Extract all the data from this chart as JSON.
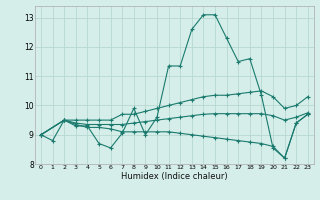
{
  "title": "",
  "xlabel": "Humidex (Indice chaleur)",
  "background_color": "#d5eee9",
  "grid_color": "#b8d8d2",
  "line_color": "#1a7a6e",
  "xlim": [
    -0.5,
    23.5
  ],
  "ylim": [
    8.0,
    13.4
  ],
  "yticks": [
    8,
    9,
    10,
    11,
    12,
    13
  ],
  "xticks": [
    0,
    1,
    2,
    3,
    4,
    5,
    6,
    7,
    8,
    9,
    10,
    11,
    12,
    13,
    14,
    15,
    16,
    17,
    18,
    19,
    20,
    21,
    22,
    23
  ],
  "lines": [
    {
      "x": [
        0,
        1,
        2,
        3,
        4,
        5,
        6,
        7,
        8,
        9,
        10,
        11,
        12,
        13,
        14,
        15,
        16,
        17,
        18,
        19,
        20,
        21,
        22,
        23
      ],
      "y": [
        9.0,
        8.8,
        9.5,
        9.3,
        9.3,
        8.7,
        8.55,
        9.05,
        9.9,
        9.0,
        9.6,
        11.35,
        11.35,
        12.6,
        13.1,
        13.1,
        12.3,
        11.5,
        11.6,
        10.35,
        8.55,
        8.2,
        9.4,
        9.7
      ]
    },
    {
      "x": [
        0,
        2,
        3,
        4,
        5,
        6,
        7,
        8,
        9,
        10,
        11,
        12,
        13,
        14,
        15,
        16,
        17,
        18,
        19,
        20,
        21,
        22,
        23
      ],
      "y": [
        9.0,
        9.5,
        9.5,
        9.5,
        9.5,
        9.5,
        9.7,
        9.7,
        9.8,
        9.9,
        10.0,
        10.1,
        10.2,
        10.3,
        10.35,
        10.35,
        10.4,
        10.45,
        10.5,
        10.3,
        9.9,
        10.0,
        10.3
      ]
    },
    {
      "x": [
        0,
        2,
        3,
        4,
        5,
        6,
        7,
        8,
        9,
        10,
        11,
        12,
        13,
        14,
        15,
        16,
        17,
        18,
        19,
        20,
        21,
        22,
        23
      ],
      "y": [
        9.0,
        9.5,
        9.4,
        9.35,
        9.35,
        9.35,
        9.35,
        9.4,
        9.45,
        9.5,
        9.55,
        9.6,
        9.65,
        9.7,
        9.72,
        9.72,
        9.72,
        9.72,
        9.72,
        9.65,
        9.5,
        9.6,
        9.75
      ]
    },
    {
      "x": [
        0,
        2,
        3,
        4,
        5,
        6,
        7,
        8,
        9,
        10,
        11,
        12,
        13,
        14,
        15,
        16,
        17,
        18,
        19,
        20,
        21,
        22,
        23
      ],
      "y": [
        9.0,
        9.5,
        9.35,
        9.25,
        9.25,
        9.2,
        9.1,
        9.1,
        9.1,
        9.1,
        9.1,
        9.05,
        9.0,
        8.95,
        8.9,
        8.85,
        8.8,
        8.75,
        8.7,
        8.6,
        8.2,
        9.4,
        9.7
      ]
    }
  ]
}
